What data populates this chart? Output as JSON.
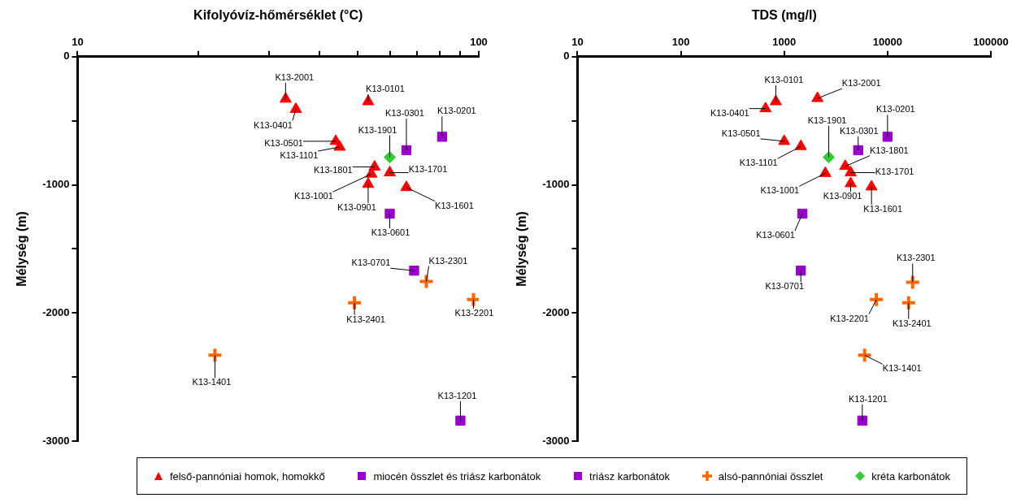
{
  "chart_data": [
    {
      "type": "scatter",
      "xlabel": "Kifolyóvíz-hőmérséklet (°C)",
      "ylabel": "Mélység (m)",
      "log": "x",
      "legend": "bottom",
      "grid": false,
      "xlim": [
        10,
        100
      ],
      "xticks": [
        10,
        {
          "value": 20,
          "label": null
        },
        {
          "value": 30,
          "label": null
        },
        {
          "value": 40,
          "label": null
        },
        {
          "value": 50,
          "label": null
        },
        {
          "value": 60,
          "label": null
        },
        {
          "value": 70,
          "label": null
        },
        {
          "value": 80,
          "label": null
        },
        {
          "value": 90,
          "label": null
        },
        100
      ],
      "ylim": [
        -3000,
        0
      ],
      "yticks": [
        -3000,
        {
          "value": -2500,
          "label": null
        },
        -2000,
        {
          "value": -1500,
          "label": null
        },
        -1000,
        {
          "value": -500,
          "label": null
        },
        0
      ],
      "series": [
        {
          "name": "felső-pannóniai homok, homokkő",
          "color": "#ff0000",
          "marker": "triangle",
          "x": [
            33,
            35,
            53,
            44,
            45,
            55,
            60,
            54,
            53,
            66
          ],
          "values": [
            -330,
            -410,
            -350,
            -660,
            -705,
            -860,
            -905,
            -915,
            -995,
            -1020
          ]
        },
        {
          "name": "miocén összlet és triász karbonátok",
          "color": "#9900cc",
          "marker": "square",
          "x": [
            81
          ],
          "values": [
            -625
          ]
        },
        {
          "name": "triász karbonátok",
          "color": "#9900cc",
          "marker": "square",
          "x": [
            66,
            60,
            69,
            90
          ],
          "values": [
            -730,
            -1225,
            -1670,
            -2840
          ]
        },
        {
          "name": "alsó-pannóniai összlet",
          "color": "#ff6600",
          "marker": "cross",
          "x": [
            74,
            49,
            97,
            22
          ],
          "values": [
            -1755,
            -1920,
            -1895,
            -2330
          ]
        },
        {
          "name": "kréta karbonátok",
          "color": "#33cc33",
          "marker": "diamond",
          "x": [
            60
          ],
          "values": [
            -785
          ]
        }
      ],
      "annotations": [
        {
          "text": "K13-2001",
          "x": 33,
          "y": -330
        },
        {
          "text": "K13-0401",
          "x": 35,
          "y": -410
        },
        {
          "text": "K13-0101",
          "x": 53,
          "y": -350
        },
        {
          "text": "K13-0201",
          "x": 81,
          "y": -625
        },
        {
          "text": "K13-0301",
          "x": 66,
          "y": -730
        },
        {
          "text": "K13-0501",
          "x": 44,
          "y": -660
        },
        {
          "text": "K13-1101",
          "x": 45,
          "y": -705
        },
        {
          "text": "K13-1901",
          "x": 60,
          "y": -785
        },
        {
          "text": "K13-1801",
          "x": 55,
          "y": -860
        },
        {
          "text": "K13-1701",
          "x": 60,
          "y": -905
        },
        {
          "text": "K13-1001",
          "x": 54,
          "y": -915
        },
        {
          "text": "K13-0901",
          "x": 53,
          "y": -995
        },
        {
          "text": "K13-1601",
          "x": 66,
          "y": -1020
        },
        {
          "text": "K13-0601",
          "x": 60,
          "y": -1225
        },
        {
          "text": "K13-0701",
          "x": 69,
          "y": -1670
        },
        {
          "text": "K13-2301",
          "x": 74,
          "y": -1755
        },
        {
          "text": "K13-2401",
          "x": 49,
          "y": -1920
        },
        {
          "text": "K13-2201",
          "x": 97,
          "y": -1895
        },
        {
          "text": "K13-1401",
          "x": 22,
          "y": -2330
        },
        {
          "text": "K13-1201",
          "x": 90,
          "y": -2840
        }
      ]
    },
    {
      "type": "scatter",
      "xlabel": "TDS (mg/l)",
      "ylabel": "Mélység (m)",
      "log": "x",
      "grid": false,
      "xlim": [
        10,
        100000
      ],
      "xticks": [
        10,
        100,
        1000,
        10000,
        100000
      ],
      "ylim": [
        -3000,
        0
      ],
      "yticks": [
        -3000,
        {
          "value": -2500,
          "label": null
        },
        -2000,
        {
          "value": -1500,
          "label": null
        },
        -1000,
        {
          "value": -500,
          "label": null
        },
        0
      ],
      "series": [
        {
          "color": "#ff0000",
          "marker": "triangle",
          "x": [
            2100,
            660,
            830,
            1000,
            1450,
            3900,
            4400,
            2500,
            4400,
            7000
          ],
          "values": [
            -325,
            -405,
            -350,
            -660,
            -700,
            -855,
            -905,
            -910,
            -990,
            -1015
          ]
        },
        {
          "color": "#9900cc",
          "marker": "square",
          "x": [
            10000
          ],
          "values": [
            -625
          ]
        },
        {
          "color": "#9900cc",
          "marker": "square",
          "x": [
            5200,
            1500,
            1450,
            5700
          ],
          "values": [
            -730,
            -1225,
            -1670,
            -2840
          ]
        },
        {
          "color": "#ff6600",
          "marker": "cross",
          "x": [
            17500,
            16000,
            7800,
            6000
          ],
          "values": [
            -1760,
            -1920,
            -1895,
            -2330
          ]
        },
        {
          "color": "#33cc33",
          "marker": "diamond",
          "x": [
            2700
          ],
          "values": [
            -785
          ]
        }
      ],
      "annotations": [
        {
          "text": "K13-2001",
          "x": 2100,
          "y": -325
        },
        {
          "text": "K13-0401",
          "x": 660,
          "y": -405
        },
        {
          "text": "K13-0101",
          "x": 830,
          "y": -350
        },
        {
          "text": "K13-0201",
          "x": 10000,
          "y": -625
        },
        {
          "text": "K13-0301",
          "x": 5200,
          "y": -730
        },
        {
          "text": "K13-0501",
          "x": 1000,
          "y": -660
        },
        {
          "text": "K13-1101",
          "x": 1450,
          "y": -700
        },
        {
          "text": "K13-1901",
          "x": 2700,
          "y": -785
        },
        {
          "text": "K13-1801",
          "x": 3900,
          "y": -855
        },
        {
          "text": "K13-1701",
          "x": 4400,
          "y": -905
        },
        {
          "text": "K13-1001",
          "x": 2500,
          "y": -910
        },
        {
          "text": "K13-0901",
          "x": 4400,
          "y": -990
        },
        {
          "text": "K13-1601",
          "x": 7000,
          "y": -1015
        },
        {
          "text": "K13-0601",
          "x": 1500,
          "y": -1225
        },
        {
          "text": "K13-0701",
          "x": 1450,
          "y": -1670
        },
        {
          "text": "K13-2301",
          "x": 17500,
          "y": -1760
        },
        {
          "text": "K13-2401",
          "x": 16000,
          "y": -1920
        },
        {
          "text": "K13-2201",
          "x": 7800,
          "y": -1895
        },
        {
          "text": "K13-1401",
          "x": 6000,
          "y": -2330
        },
        {
          "text": "K13-1201",
          "x": 5700,
          "y": -2840
        }
      ]
    }
  ]
}
